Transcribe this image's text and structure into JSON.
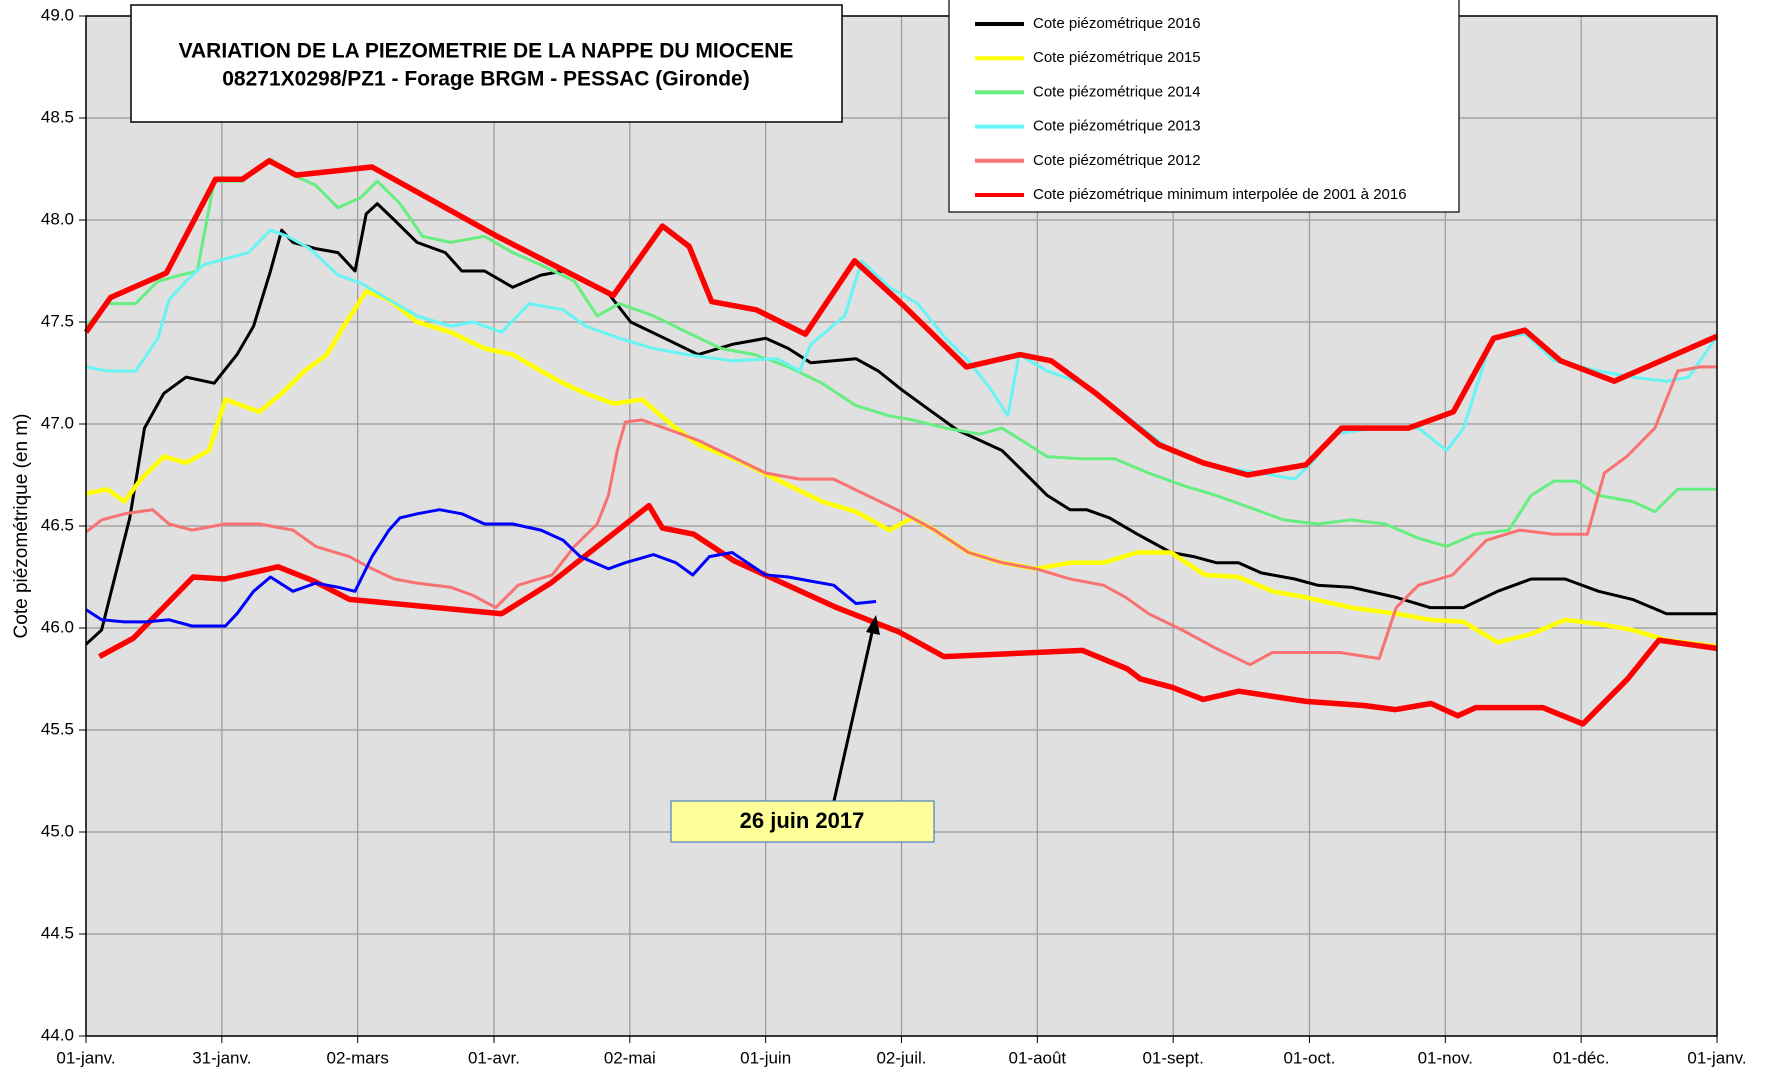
{
  "chart_data": {
    "type": "line",
    "title": "VARIATION DE LA PIEZOMETRIE DE LA NAPPE DU MIOCENE",
    "subtitle": "08271X0298/PZ1  - Forage BRGM - PESSAC (Gironde)",
    "y_label": "Cote piézométrique (en m)",
    "annotation": "26 juin 2017",
    "grid": true,
    "xlim": [
      0,
      365
    ],
    "xticks": [
      {
        "value": 0,
        "label": "01-janv."
      },
      {
        "value": 30.4,
        "label": "31-janv."
      },
      {
        "value": 60.8,
        "label": "02-mars"
      },
      {
        "value": 91.3,
        "label": "01-avr."
      },
      {
        "value": 121.7,
        "label": "02-mai"
      },
      {
        "value": 152.1,
        "label": "01-juin"
      },
      {
        "value": 182.5,
        "label": "02-juil."
      },
      {
        "value": 212.9,
        "label": "01-août"
      },
      {
        "value": 243.3,
        "label": "01-sept."
      },
      {
        "value": 273.8,
        "label": "01-oct."
      },
      {
        "value": 304.2,
        "label": "01-nov."
      },
      {
        "value": 334.6,
        "label": "01-déc."
      },
      {
        "value": 365,
        "label": "01-janv."
      }
    ],
    "ylim": [
      44,
      49
    ],
    "yticks": [
      {
        "value": 44,
        "label": "44.0"
      },
      44.5,
      {
        "value": 45,
        "label": "45.0"
      },
      45.5,
      {
        "value": 46,
        "label": "46.0"
      },
      46.5,
      {
        "value": 47,
        "label": "47.0"
      },
      47.5,
      {
        "value": 48,
        "label": "48.0"
      },
      48.5,
      {
        "value": 49,
        "label": "49.0"
      }
    ],
    "series": [
      {
        "name": "Cote piézométrique 2016",
        "color": "#000000",
        "x": [
          0,
          3.5,
          6,
          9.8,
          13.1,
          17.4,
          22.4,
          28.7,
          33.8,
          37.5,
          41.3,
          43.8,
          46.3,
          51.4,
          56.4,
          60.2,
          62.7,
          65.2,
          69.0,
          74.1,
          80.4,
          84.1,
          89.2,
          95.5,
          101.8,
          106.8,
          111.8,
          116.9,
          121.9,
          129.5,
          137.0,
          144.6,
          152.1,
          157.2,
          162.2,
          167.3,
          172.3,
          177.3,
          182.4,
          187.4,
          195.0,
          200.0,
          205.0,
          210.1,
          215.1,
          220.2,
          223.9,
          229.0,
          235.3,
          242.8,
          247.9,
          252.9,
          257.9,
          263.0,
          270.5,
          275.6,
          283.1,
          293.2,
          300.8,
          308.3,
          315.9,
          323.4,
          331.0,
          338.5,
          346.1,
          353.7,
          365
        ],
        "values": [
          45.92,
          45.99,
          46.21,
          46.54,
          46.98,
          47.15,
          47.23,
          47.2,
          47.34,
          47.48,
          47.75,
          47.95,
          47.89,
          47.86,
          47.84,
          47.75,
          48.03,
          48.08,
          48.0,
          47.89,
          47.84,
          47.75,
          47.75,
          47.67,
          47.73,
          47.75,
          47.7,
          47.64,
          47.5,
          47.42,
          47.34,
          47.39,
          47.42,
          47.37,
          47.3,
          47.31,
          47.32,
          47.26,
          47.17,
          47.09,
          46.97,
          46.92,
          46.87,
          46.76,
          46.65,
          46.58,
          46.58,
          46.54,
          46.46,
          46.37,
          46.35,
          46.32,
          46.32,
          46.27,
          46.24,
          46.21,
          46.2,
          46.15,
          46.1,
          46.1,
          46.18,
          46.24,
          46.24,
          46.18,
          46.14,
          46.07,
          46.07
        ]
      },
      {
        "name": "Cote piézométrique 2015",
        "color": "#ffff00",
        "x": [
          0,
          4.8,
          8.6,
          12.3,
          17.4,
          22.4,
          27.5,
          31.2,
          38.8,
          43.8,
          48.9,
          53.9,
          57.7,
          62.7,
          67.8,
          74.1,
          81.6,
          89.2,
          95.5,
          101.8,
          106.8,
          111.8,
          118.1,
          124.4,
          132.0,
          137.0,
          147.1,
          157.2,
          164.7,
          172.3,
          179.8,
          184.9,
          189.9,
          197.5,
          205.0,
          212.6,
          220.2,
          227.7,
          235.3,
          242.8,
          250.4,
          257.9,
          265.5,
          273.0,
          283.1,
          293.2,
          300.8,
          308.3,
          315.9,
          323.4,
          331.0,
          338.5,
          346.1,
          353.7,
          365
        ],
        "values": [
          46.66,
          46.68,
          46.62,
          46.73,
          46.84,
          46.81,
          46.87,
          47.12,
          47.06,
          47.15,
          47.26,
          47.34,
          47.48,
          47.65,
          47.61,
          47.5,
          47.45,
          47.37,
          47.34,
          47.26,
          47.2,
          47.15,
          47.1,
          47.12,
          46.98,
          46.9,
          46.81,
          46.7,
          46.62,
          46.57,
          46.48,
          46.54,
          46.48,
          46.37,
          46.32,
          46.29,
          46.32,
          46.32,
          46.37,
          46.37,
          46.26,
          46.25,
          46.18,
          46.15,
          46.1,
          46.07,
          46.04,
          46.03,
          45.93,
          45.97,
          46.04,
          46.02,
          45.99,
          45.94,
          45.91
        ]
      },
      {
        "name": "Cote piézométrique 2014",
        "color": "#66ee80",
        "x": [
          0,
          4.8,
          11.1,
          16.1,
          21.2,
          24.9,
          28.7,
          35.0,
          41.3,
          46.3,
          51.4,
          56.4,
          61.5,
          65.2,
          70.3,
          75.3,
          81.6,
          89.2,
          95.5,
          101.8,
          109.3,
          114.4,
          119.4,
          127.0,
          134.5,
          142.1,
          149.6,
          157.2,
          164.7,
          172.3,
          179.8,
          184.9,
          192.4,
          200.0,
          205.0,
          210.1,
          215.1,
          222.7,
          230.2,
          237.8,
          245.3,
          252.9,
          260.5,
          268.0,
          275.6,
          283.1,
          290.7,
          298.2,
          304.5,
          310.8,
          318.4,
          323.4,
          328.5,
          333.5,
          338.5,
          346.1,
          351.1,
          356.2,
          365
        ],
        "values": [
          47.48,
          47.59,
          47.59,
          47.7,
          47.73,
          47.75,
          48.19,
          48.19,
          48.3,
          48.22,
          48.17,
          48.06,
          48.11,
          48.19,
          48.08,
          47.92,
          47.89,
          47.92,
          47.84,
          47.78,
          47.7,
          47.53,
          47.59,
          47.53,
          47.45,
          47.37,
          47.34,
          47.28,
          47.2,
          47.09,
          47.04,
          47.02,
          46.98,
          46.95,
          46.98,
          46.91,
          46.84,
          46.83,
          46.83,
          46.76,
          46.7,
          46.65,
          46.59,
          46.53,
          46.51,
          46.53,
          46.51,
          46.44,
          46.4,
          46.46,
          46.48,
          46.65,
          46.72,
          46.72,
          46.65,
          46.62,
          46.57,
          46.68,
          46.68
        ]
      },
      {
        "name": "Cote piézométrique 2013",
        "color": "#66f4f4",
        "x": [
          0,
          4.8,
          11.1,
          16.1,
          18.6,
          22.4,
          26.2,
          31.2,
          36.3,
          41.3,
          45.1,
          50.1,
          56.4,
          61.5,
          67.8,
          74.1,
          81.6,
          86.6,
          93.0,
          99.2,
          106.8,
          111.8,
          119.4,
          127.0,
          134.5,
          144.6,
          154.7,
          159.7,
          162.2,
          169.8,
          173.6,
          179.8,
          186.1,
          192.4,
          197.5,
          202.5,
          206.3,
          208.8,
          215.1,
          222.7,
          232.7,
          242.8,
          252.9,
          263.0,
          270.5,
          274.3,
          279.3,
          288.2,
          298.2,
          304.5,
          308.3,
          314.6,
          322.2,
          328.5,
          338.5,
          346.1,
          353.7,
          358.7,
          365
        ],
        "values": [
          47.28,
          47.26,
          47.26,
          47.42,
          47.61,
          47.7,
          47.78,
          47.81,
          47.84,
          47.95,
          47.92,
          47.86,
          47.73,
          47.69,
          47.61,
          47.53,
          47.48,
          47.5,
          47.45,
          47.59,
          47.56,
          47.48,
          47.42,
          47.37,
          47.34,
          47.31,
          47.32,
          47.26,
          47.39,
          47.53,
          47.8,
          47.67,
          47.59,
          47.42,
          47.31,
          47.17,
          47.04,
          47.34,
          47.26,
          47.2,
          47.04,
          46.87,
          46.79,
          46.76,
          46.73,
          46.81,
          46.95,
          46.98,
          46.98,
          46.87,
          46.98,
          47.42,
          47.44,
          47.31,
          47.26,
          47.23,
          47.21,
          47.23,
          47.43
        ]
      },
      {
        "name": "Cote piézométrique 2012",
        "color": "#f87272",
        "x": [
          0,
          3.5,
          8.6,
          14.9,
          18.6,
          23.7,
          31.2,
          38.8,
          46.3,
          51.4,
          58.9,
          64.0,
          69.0,
          74.1,
          81.6,
          86.6,
          91.7,
          96.7,
          104.3,
          109.3,
          114.4,
          116.9,
          118.9,
          120.7,
          124.4,
          129.5,
          137.0,
          144.6,
          152.1,
          159.7,
          167.3,
          174.8,
          182.4,
          189.9,
          197.5,
          205.0,
          212.6,
          220.2,
          227.7,
          232.7,
          237.8,
          245.3,
          252.9,
          260.5,
          265.5,
          273.0,
          280.6,
          289.4,
          293.2,
          298.2,
          305.8,
          313.4,
          320.9,
          328.5,
          336.0,
          339.8,
          344.8,
          351.1,
          356.2,
          361.2,
          365
        ],
        "values": [
          46.47,
          46.53,
          46.56,
          46.58,
          46.51,
          46.48,
          46.51,
          46.51,
          46.48,
          46.4,
          46.35,
          46.29,
          46.24,
          46.22,
          46.2,
          46.16,
          46.1,
          46.21,
          46.26,
          46.4,
          46.51,
          46.65,
          46.87,
          47.01,
          47.02,
          46.98,
          46.92,
          46.84,
          46.76,
          46.73,
          46.73,
          46.65,
          46.57,
          46.48,
          46.37,
          46.32,
          46.29,
          46.24,
          46.21,
          46.15,
          46.07,
          45.99,
          45.9,
          45.82,
          45.88,
          45.88,
          45.88,
          45.85,
          46.1,
          46.21,
          46.26,
          46.43,
          46.48,
          46.46,
          46.46,
          46.76,
          46.84,
          46.98,
          47.26,
          47.28,
          47.28
        ]
      },
      {
        "name": "Cote piézométrique minimum interpolée de 2001 à 2016",
        "color": "#ff0000",
        "x": [
          3,
          10.6,
          24,
          31,
          43,
          51,
          59,
          93,
          104,
          126,
          129,
          136,
          145,
          158,
          168,
          182,
          192,
          223,
          233,
          236,
          243,
          250,
          258,
          273,
          286,
          293,
          301,
          307,
          311,
          326,
          335,
          345,
          352,
          365
        ],
        "values": [
          45.86,
          45.95,
          46.25,
          46.24,
          46.3,
          46.23,
          46.14,
          46.07,
          46.22,
          46.6,
          46.49,
          46.46,
          46.33,
          46.2,
          46.1,
          45.98,
          45.86,
          45.89,
          45.8,
          45.75,
          45.71,
          45.65,
          45.69,
          45.64,
          45.62,
          45.6,
          45.63,
          45.57,
          45.61,
          45.61,
          45.53,
          45.75,
          45.94,
          45.9
        ]
      },
      {
        "color": "#ff0000",
        "x": [
          0,
          5.5,
          18,
          29,
          35,
          41,
          47,
          64,
          92,
          118,
          129,
          135,
          140,
          150,
          161,
          172,
          183,
          197,
          209,
          216,
          226,
          240,
          250,
          260,
          273,
          281,
          296,
          306,
          315,
          322,
          330,
          342,
          365
        ],
        "values": [
          47.45,
          47.62,
          47.74,
          48.2,
          48.2,
          48.29,
          48.22,
          48.26,
          47.92,
          47.63,
          47.97,
          47.87,
          47.6,
          47.56,
          47.44,
          47.8,
          47.58,
          47.28,
          47.34,
          47.31,
          47.15,
          46.9,
          46.81,
          46.75,
          46.8,
          46.98,
          46.98,
          47.06,
          47.42,
          47.46,
          47.31,
          47.21,
          47.43
        ]
      },
      {
        "color": "#0000ff",
        "x": [
          0,
          3.5,
          8.6,
          13.6,
          18.6,
          23.7,
          31.2,
          33.8,
          37.5,
          41.3,
          46.3,
          51.4,
          56.4,
          60.2,
          64.0,
          67.8,
          70.3,
          74.1,
          79.1,
          84.1,
          89.2,
          95.5,
          101.8,
          106.8,
          110.6,
          116.9,
          120.7,
          127.0,
          132.0,
          135.8,
          139.5,
          144.6,
          152.1,
          157.2,
          162.2,
          167.3,
          172.3,
          176.8
        ],
        "values": [
          46.09,
          46.04,
          46.03,
          46.03,
          46.04,
          46.01,
          46.01,
          46.07,
          46.18,
          46.25,
          46.18,
          46.22,
          46.2,
          46.18,
          46.35,
          46.48,
          46.54,
          46.56,
          46.58,
          46.56,
          46.51,
          46.51,
          46.48,
          46.43,
          46.35,
          46.29,
          46.32,
          46.36,
          46.32,
          46.26,
          46.35,
          46.37,
          46.26,
          46.25,
          46.23,
          46.21,
          46.12,
          46.13
        ]
      }
    ]
  }
}
